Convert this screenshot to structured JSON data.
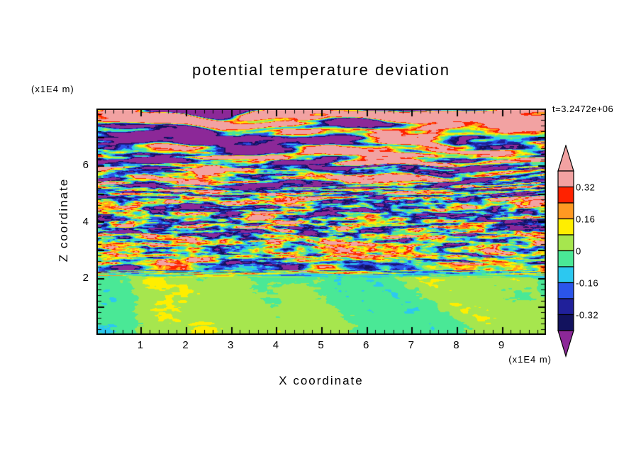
{
  "chart_data": {
    "type": "heatmap",
    "subtype": "filled-contour",
    "title": "potential temperature deviation",
    "timestamp_label": "t=3.2472e+06",
    "xlabel": "X coordinate",
    "ylabel": "Z coordinate",
    "x_unit_label": "(x1E4 m)",
    "z_unit_label": "(x1E4 m)",
    "x_range": [
      0.05,
      9.95
    ],
    "z_range": [
      0.05,
      7.95
    ],
    "x_ticks": {
      "values": [
        1,
        2,
        3,
        4,
        5,
        6,
        7,
        8,
        9
      ],
      "labels": [
        "1",
        "2",
        "3",
        "4",
        "5",
        "6",
        "7",
        "8",
        "9"
      ]
    },
    "y_ticks": {
      "values": [
        2,
        4,
        6
      ],
      "labels": [
        "2",
        "4",
        "6"
      ]
    },
    "major_tick_step": 1,
    "minor_tick_step": 0.2,
    "grid": false,
    "legend_position": "right-colorbar",
    "colorbar": {
      "boundaries": [
        0.4,
        0.32,
        0.24,
        0.16,
        0.08,
        0,
        -0.08,
        -0.16,
        -0.24,
        -0.32,
        -0.4
      ],
      "colors": [
        "#f2a2a2",
        "#ff2200",
        "#ff9922",
        "#ffee00",
        "#a6e64e",
        "#4ae896",
        "#2cc8f0",
        "#2b55ea",
        "#20209a",
        "#12125e"
      ],
      "overflow_color": "#f2a2a2",
      "underflow_color": "#8c2898",
      "tick_labels": [
        {
          "label": "0.32",
          "boundary_index": 1
        },
        {
          "label": "0.16",
          "boundary_index": 3
        },
        {
          "label": "0",
          "boundary_index": 5
        },
        {
          "label": "-0.16",
          "boundary_index": 7
        },
        {
          "label": "-0.32",
          "boundary_index": 9
        }
      ]
    },
    "field": {
      "description": "Stratified-turbulence temperature deviation: smooth near-zero (green) mixed layer below z=2; fine horizontally striated +/-0.3 turbulence for 2<z<5; large-amplitude salmon/purple wave-breaking bands above z=5; dark purple band along the top edge.",
      "seed": 1337,
      "gain": 2.2,
      "warp": {
        "xs": 160,
        "zs": 70,
        "amp": 10
      },
      "fine_scale": {
        "xs": 11,
        "zs": 3.8
      },
      "regions": [
        {
          "py": 0.0,
          "amp": 1.2,
          "xs": 140,
          "zs": 12,
          "bias": -0.28,
          "fine": 0.03
        },
        {
          "py": 0.045,
          "amp": 0.75,
          "xs": 130,
          "zs": 14,
          "bias": 0.12,
          "fine": 0.05
        },
        {
          "py": 0.17,
          "amp": 0.7,
          "xs": 115,
          "zs": 13,
          "bias": 0.08,
          "fine": 0.06
        },
        {
          "py": 0.3,
          "amp": 0.52,
          "xs": 80,
          "zs": 10,
          "bias": 0.02,
          "fine": 0.1
        },
        {
          "py": 0.4,
          "amp": 0.38,
          "xs": 48,
          "zs": 7,
          "bias": -0.01,
          "fine": 0.12
        },
        {
          "py": 0.62,
          "amp": 0.35,
          "xs": 42,
          "zs": 6,
          "bias": -0.01,
          "fine": 0.12
        },
        {
          "py": 0.715,
          "amp": 0.26,
          "xs": 55,
          "zs": 8,
          "bias": 0.0,
          "fine": 0.08
        },
        {
          "py": 0.755,
          "amp": 0.08,
          "xs": 95,
          "zs": 24,
          "bias": 0.012,
          "fine": 0.015
        },
        {
          "py": 1.0,
          "amp": 0.07,
          "xs": 115,
          "zs": 30,
          "bias": 0.012,
          "fine": 0.01
        }
      ]
    },
    "axis_color": "#000000",
    "background_color": "#ffffff"
  }
}
